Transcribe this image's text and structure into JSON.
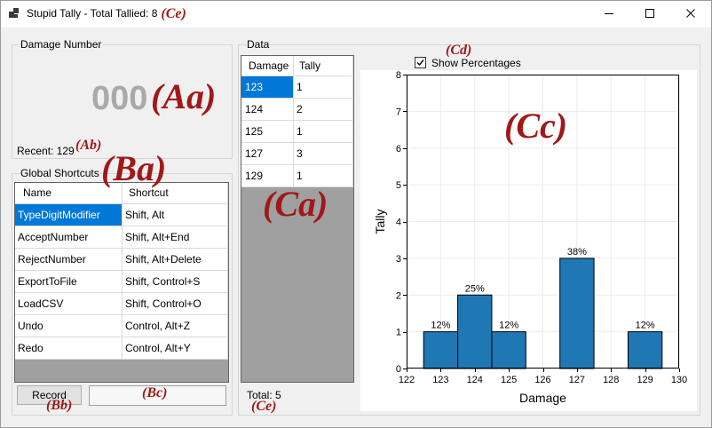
{
  "window": {
    "title": "Stupid Tally - Total Tallied: 8",
    "icons": {
      "app": "tally-app-icon",
      "minimize": "minimize-icon",
      "maximize": "maximize-icon",
      "close": "close-icon"
    }
  },
  "annotations": {
    "aa": "(Aa)",
    "ab": "(Ab)",
    "ba": "(Ba)",
    "bb": "(Bb)",
    "bc": "(Bc)",
    "ca": "(Ca)",
    "cc": "(Cc)",
    "cd": "(Cd)",
    "ce": "(Ce)"
  },
  "damage_number": {
    "group_label": "Damage Number",
    "display": "000",
    "recent": "Recent: 129"
  },
  "global_shortcuts": {
    "group_label": "Global Shortcuts",
    "columns": [
      "Name",
      "Shortcut"
    ],
    "rows": [
      {
        "name": "TypeDigitModifier",
        "shortcut": "Shift, Alt"
      },
      {
        "name": "AcceptNumber",
        "shortcut": "Shift, Alt+End"
      },
      {
        "name": "RejectNumber",
        "shortcut": "Shift, Alt+Delete"
      },
      {
        "name": "ExportToFile",
        "shortcut": "Shift, Control+S"
      },
      {
        "name": "LoadCSV",
        "shortcut": "Shift, Control+O"
      },
      {
        "name": "Undo",
        "shortcut": "Control, Alt+Z"
      },
      {
        "name": "Redo",
        "shortcut": "Control, Alt+Y"
      }
    ],
    "selected_row": 0,
    "record_button": "Record"
  },
  "data": {
    "group_label": "Data",
    "columns": [
      "Damage",
      "Tally"
    ],
    "rows": [
      {
        "damage": "123",
        "tally": "1"
      },
      {
        "damage": "124",
        "tally": "2"
      },
      {
        "damage": "125",
        "tally": "1"
      },
      {
        "damage": "127",
        "tally": "3"
      },
      {
        "damage": "129",
        "tally": "1"
      }
    ],
    "selected_row": 0,
    "total": "Total: 5",
    "show_percentages": {
      "label": "Show Percentages",
      "checked": true
    }
  },
  "colors": {
    "selection": "#0078d7",
    "annotation": "#a01818",
    "digits": "#a9a9a9",
    "workspace": "#a0a0a0"
  },
  "chart_data": {
    "type": "bar",
    "x": [
      123,
      124,
      125,
      127,
      129
    ],
    "values": [
      1,
      2,
      1,
      3,
      1
    ],
    "bar_labels": [
      "12%",
      "25%",
      "12%",
      "38%",
      "12%"
    ],
    "xlabel": "Damage",
    "ylabel": "Tally",
    "xlim": [
      122,
      130
    ],
    "ylim": [
      0,
      8
    ],
    "x_ticks": [
      122,
      123,
      124,
      125,
      126,
      127,
      128,
      129,
      130
    ],
    "y_ticks": [
      0,
      1,
      2,
      3,
      4,
      5,
      6,
      7,
      8
    ],
    "grid": true,
    "bar_color": "#1f77b4"
  }
}
